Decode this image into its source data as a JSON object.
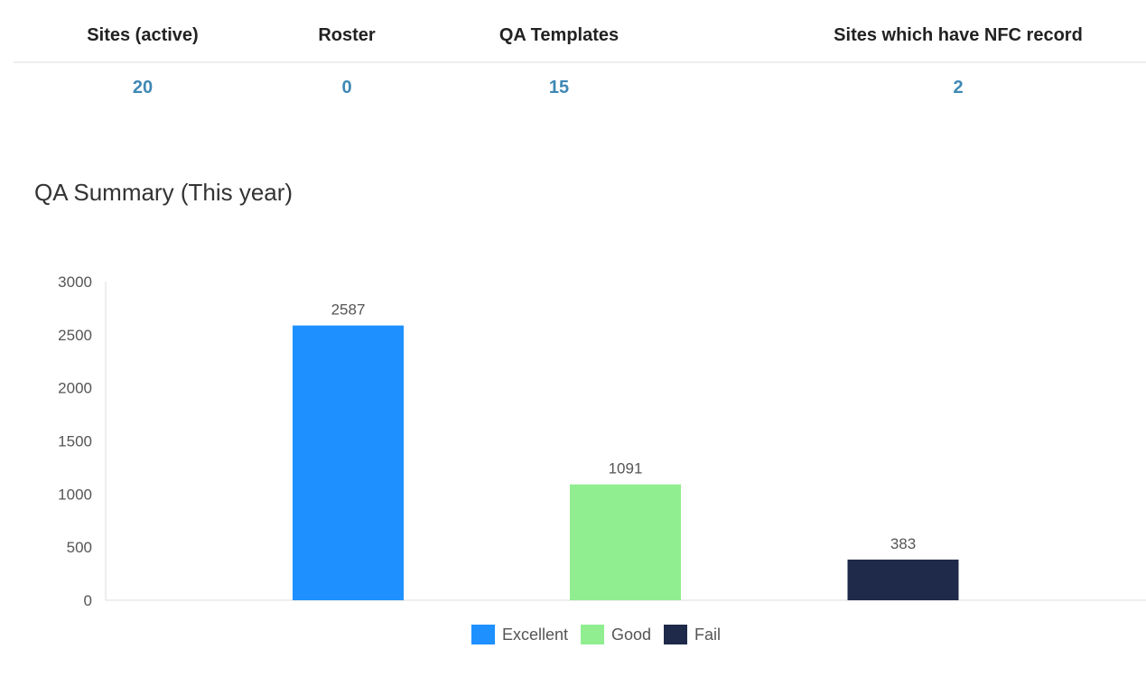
{
  "stats": [
    {
      "label": "Sites (active)",
      "value": "20"
    },
    {
      "label": "Roster",
      "value": "0"
    },
    {
      "label": "QA Templates",
      "value": "15"
    },
    {
      "label": "Sites which have NFC record",
      "value": "2"
    }
  ],
  "summary": {
    "title": "QA Summary (This year)"
  },
  "chart_data": {
    "type": "bar",
    "title": "",
    "xlabel": "",
    "ylabel": "",
    "ylim": [
      0,
      3000
    ],
    "yticks": [
      0,
      500,
      1000,
      1500,
      2000,
      2500,
      3000
    ],
    "grid": false,
    "legend_position": "bottom",
    "series": [
      {
        "name": "Excellent",
        "value": 2587,
        "color": "#1e90ff"
      },
      {
        "name": "Good",
        "value": 1091,
        "color": "#90ee90"
      },
      {
        "name": "Fail",
        "value": 383,
        "color": "#1f2a4a"
      }
    ]
  }
}
